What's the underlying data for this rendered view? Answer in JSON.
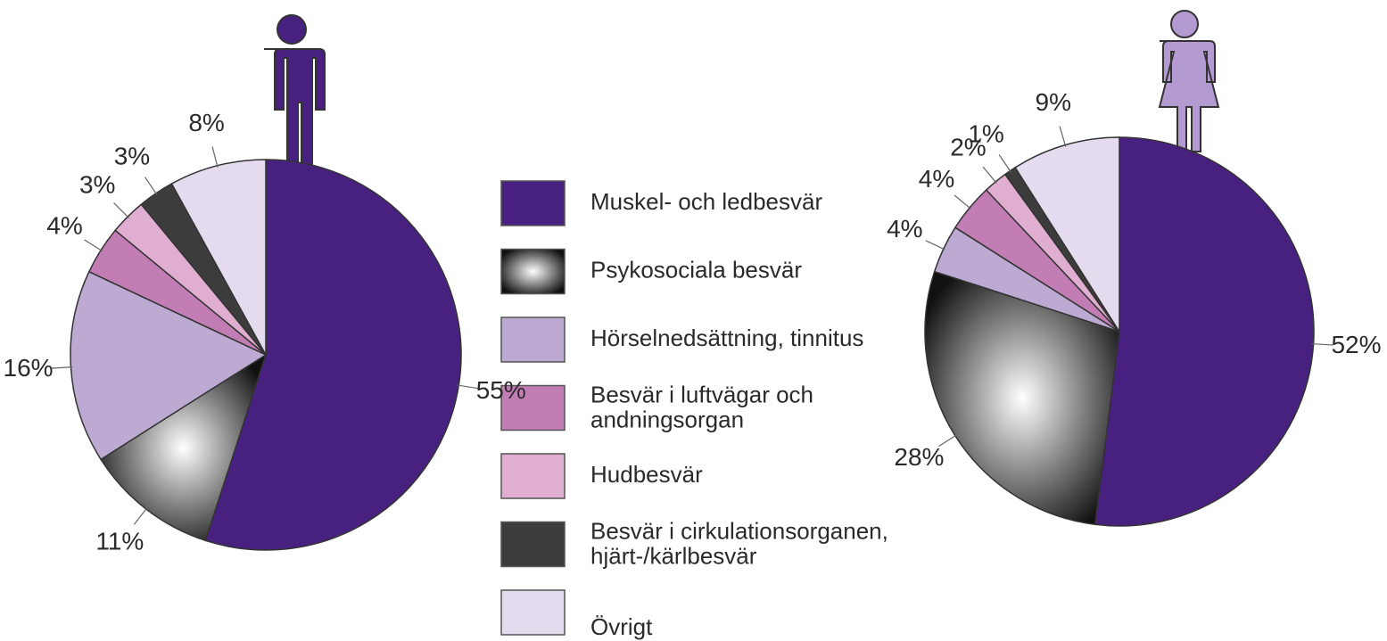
{
  "legend": {
    "categories": [
      "Muskel- och ledbesvär",
      "Psykosociala besvär",
      "Hörselnedsättning, tinnitus",
      "Besvär i luftvägar och\nandningsorgan",
      "Hudbesvär",
      "Besvär i cirkulationsorganen,\nhjärt-/kärlbesvär",
      "Övrigt"
    ],
    "colors": [
      "#482080",
      "#111111",
      "#bcaad2",
      "#c27db5",
      "#e0aed0",
      "#3c3c3c",
      "#e4dcee"
    ]
  },
  "chart_data": [
    {
      "type": "pie",
      "values": [
        55,
        11,
        16,
        4,
        3,
        3,
        8
      ],
      "value_labels": [
        "55%",
        "11%",
        "16%",
        "4%",
        "3%",
        "3%",
        "8%"
      ]
    },
    {
      "type": "pie",
      "values": [
        52,
        28,
        4,
        4,
        2,
        1,
        9
      ],
      "value_labels": [
        "52%",
        "28%",
        "4%",
        "4%",
        "2%",
        "1%",
        "9%"
      ]
    }
  ]
}
